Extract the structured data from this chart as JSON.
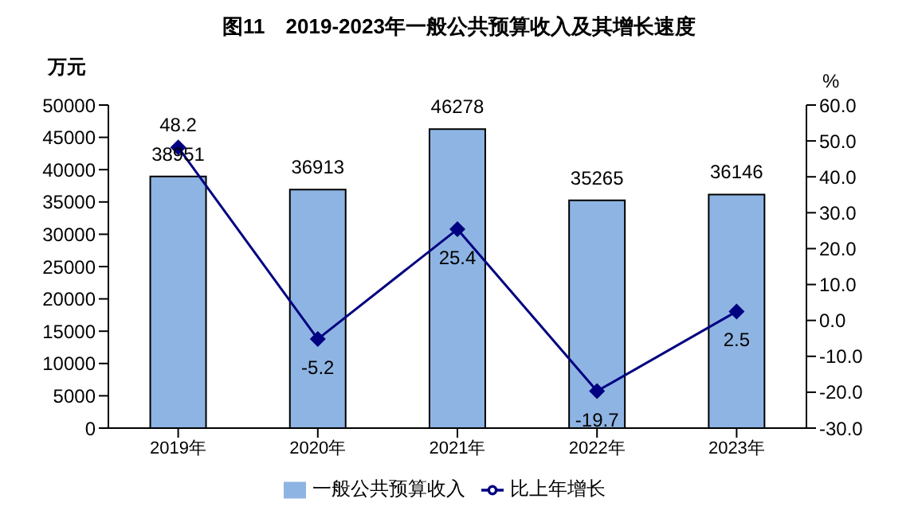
{
  "chart_data": {
    "type": "bar",
    "title": "图11　2019-2023年一般公共预算收入及其增长速度",
    "ylabel": "万元",
    "y2label": "%",
    "categories": [
      "2019年",
      "2020年",
      "2021年",
      "2022年",
      "2023年"
    ],
    "series": [
      {
        "name": "一般公共预算收入",
        "color": "#8eb4e3",
        "values": [
          38951,
          36913,
          46278,
          35265,
          36146
        ]
      },
      {
        "name": "比上年增长",
        "type": "line",
        "axis": "y2",
        "color": "#000080",
        "marker": "diamond",
        "values": [
          48.2,
          -5.2,
          25.4,
          -19.7,
          2.5
        ]
      }
    ],
    "ylim": [
      0,
      50000
    ],
    "yticks": [
      0,
      5000,
      10000,
      15000,
      20000,
      25000,
      30000,
      35000,
      40000,
      45000,
      50000
    ],
    "y2lim": [
      -30,
      60
    ],
    "y2ticks": [
      {
        "value": -30,
        "label": "-30.0"
      },
      {
        "value": -20,
        "label": "-20.0"
      },
      {
        "value": -10,
        "label": "-10.0"
      },
      {
        "value": 0,
        "label": "0.0"
      },
      {
        "value": 10,
        "label": "10.0"
      },
      {
        "value": 20,
        "label": "20.0"
      },
      {
        "value": 30,
        "label": "30.0"
      },
      {
        "value": 40,
        "label": "40.0"
      },
      {
        "value": 50,
        "label": "50.0"
      },
      {
        "value": 60,
        "label": "60.0"
      }
    ],
    "data_labels": true,
    "legend": "bottom",
    "grid": false
  }
}
